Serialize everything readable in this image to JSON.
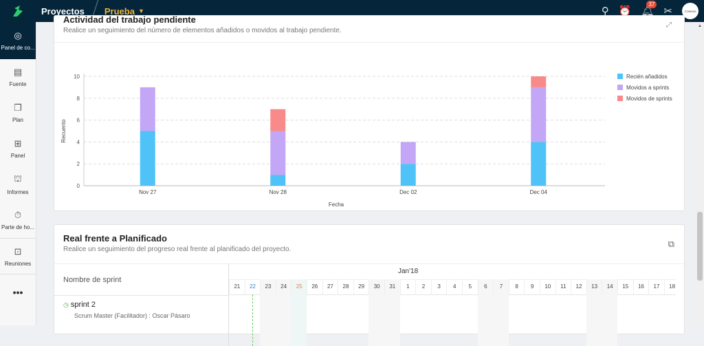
{
  "topbar": {
    "projects": "Proyectos",
    "project": "Prueba",
    "notifications": "37",
    "avatar": "CONRAS"
  },
  "sidebar": {
    "items": [
      {
        "label": "Panel de co...",
        "icon": "gauge-icon"
      },
      {
        "label": "Fuente",
        "icon": "feed-icon"
      },
      {
        "label": "Plan",
        "icon": "plan-icon"
      },
      {
        "label": "Panel",
        "icon": "board-icon"
      },
      {
        "label": "Informes",
        "icon": "reports-icon"
      },
      {
        "label": "Parte de ho...",
        "icon": "timer-icon"
      },
      {
        "label": "Reuniones",
        "icon": "meetings-icon"
      }
    ],
    "more": "•••"
  },
  "card1": {
    "title": "Actividad del trabajo pendiente",
    "subtitle": "Realice un seguimiento del número de elementos añadidos o movidos al trabajo pendiente."
  },
  "chart_data": {
    "type": "bar",
    "stacked": true,
    "categories": [
      "Nov 27",
      "Nov 28",
      "Dec 02",
      "Dec 04"
    ],
    "xlabel": "Fecha",
    "ylabel": "Recuento",
    "ylim": [
      0,
      10
    ],
    "yticks": [
      0,
      2,
      4,
      6,
      8,
      10
    ],
    "grid": true,
    "legend": "right",
    "series": [
      {
        "name": "Recién añadidos",
        "color": "#4fc3f7",
        "values": [
          5,
          1,
          2,
          4
        ]
      },
      {
        "name": "Movidos a sprints",
        "color": "#c3a6f5",
        "values": [
          4,
          4,
          2,
          5
        ]
      },
      {
        "name": "Movidos de sprints",
        "color": "#f88a8a",
        "values": [
          0,
          2,
          0,
          1
        ]
      }
    ]
  },
  "card2": {
    "title": "Real frente a Planificado",
    "subtitle": "Realice un seguimiento del progreso real frente al planificado del proyecto.",
    "column": "Nombre de sprint",
    "month": "Jan'18",
    "days": [
      "21",
      "22",
      "23",
      "24",
      "25",
      "26",
      "27",
      "28",
      "29",
      "30",
      "31",
      "1",
      "2",
      "3",
      "4",
      "5",
      "6",
      "7",
      "8",
      "9",
      "10",
      "11",
      "12",
      "13",
      "14",
      "15",
      "16",
      "17",
      "18"
    ],
    "sprint": {
      "name": "sprint 2",
      "master": "Scrum Master (Facilitador) : Oscar Pásaro"
    }
  }
}
